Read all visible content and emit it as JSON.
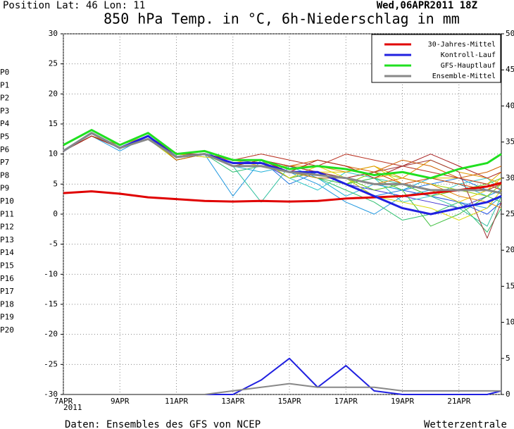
{
  "chart_data": {
    "type": "line",
    "position": "Position  Lat: 46 Lon: 11",
    "run": "Wed,06APR2011 18Z",
    "title": "850 hPa Temp. in °C, 6h-Niederschlag in mm",
    "year": "2011",
    "source": "Daten: Ensembles des GFS von NCEP",
    "brand": "Wetterzentrale",
    "x": [
      7,
      8,
      9,
      10,
      11,
      12,
      13,
      14,
      15,
      16,
      17,
      18,
      19,
      20,
      21,
      22,
      22.5
    ],
    "xlim": [
      7,
      22.5
    ],
    "xticks": [
      {
        "value": 7,
        "label": "7APR"
      },
      {
        "value": 9,
        "label": "9APR"
      },
      {
        "value": 11,
        "label": "11APR"
      },
      {
        "value": 13,
        "label": "13APR"
      },
      {
        "value": 15,
        "label": "15APR"
      },
      {
        "value": 17,
        "label": "17APR"
      },
      {
        "value": 19,
        "label": "19APR"
      },
      {
        "value": 21,
        "label": "21APR"
      }
    ],
    "ylim": [
      -30,
      30
    ],
    "yticks": [
      -30,
      -25,
      -20,
      -15,
      -10,
      -5,
      0,
      5,
      10,
      15,
      20,
      25,
      30
    ],
    "y2lim": [
      0,
      50
    ],
    "y2ticks": [
      0,
      5,
      10,
      15,
      20,
      25,
      30,
      35,
      40,
      45,
      50
    ],
    "grid": true,
    "members": [
      {
        "name": "P0",
        "color": "#4030d0",
        "values": [
          10.5,
          13,
          11,
          13,
          10,
          10,
          9,
          8.5,
          6,
          7,
          5,
          4,
          3,
          2,
          1,
          3,
          4
        ]
      },
      {
        "name": "P1",
        "color": "#2050e0",
        "values": [
          10.5,
          13,
          11,
          12.5,
          9,
          10,
          8,
          9,
          7,
          6,
          6,
          5,
          4,
          3,
          2,
          0,
          2
        ]
      },
      {
        "name": "P2",
        "color": "#2078e0",
        "values": [
          10.5,
          13.5,
          11,
          13,
          10,
          10.5,
          8,
          9,
          5,
          7,
          6,
          3,
          4,
          5,
          6,
          4,
          5
        ]
      },
      {
        "name": "P3",
        "color": "#2098e0",
        "values": [
          10.5,
          13,
          10.5,
          13,
          9.5,
          10,
          3,
          9,
          7,
          5,
          2,
          0,
          3,
          4,
          2,
          1,
          3
        ]
      },
      {
        "name": "P4",
        "color": "#20b0d8",
        "values": [
          10.5,
          13,
          11,
          12.5,
          10,
          10,
          8,
          7,
          8,
          6,
          3,
          5,
          4,
          6,
          5,
          3,
          4
        ]
      },
      {
        "name": "P5",
        "color": "#30c8c8",
        "values": [
          10.5,
          13,
          11,
          13,
          10,
          9.5,
          9,
          9,
          6,
          4,
          7,
          6,
          2,
          3,
          5,
          6,
          4
        ]
      },
      {
        "name": "P6",
        "color": "#30c0a0",
        "values": [
          10.5,
          13.5,
          11,
          13,
          9.5,
          10,
          8,
          2,
          8,
          7,
          5,
          6,
          5,
          3,
          1,
          -2,
          3
        ]
      },
      {
        "name": "P7",
        "color": "#30c070",
        "values": [
          10.5,
          13,
          11,
          12.5,
          9,
          10,
          7,
          8,
          7,
          6,
          4,
          2,
          -1,
          0,
          2,
          -3,
          1
        ]
      },
      {
        "name": "P8",
        "color": "#40c040",
        "values": [
          10.5,
          13.5,
          11,
          13,
          10,
          10,
          8,
          9,
          7,
          6,
          5,
          6,
          4,
          -2,
          0,
          3,
          2
        ]
      },
      {
        "name": "P9",
        "color": "#60c020",
        "values": [
          10.5,
          13,
          11.5,
          13,
          10,
          10,
          8,
          9,
          6,
          7,
          6,
          4,
          5,
          3,
          4,
          5,
          6
        ]
      },
      {
        "name": "P10",
        "color": "#90d000",
        "values": [
          10.5,
          13,
          11,
          13,
          9.5,
          10,
          8,
          8,
          7,
          7,
          5,
          7,
          6,
          5,
          4,
          3,
          5
        ]
      },
      {
        "name": "P11",
        "color": "#d8d800",
        "values": [
          10.5,
          13,
          11,
          12.5,
          9,
          10,
          8,
          9,
          6,
          8,
          6,
          3,
          2,
          1,
          -1,
          1,
          4
        ]
      },
      {
        "name": "P12",
        "color": "#e8c800",
        "values": [
          10.5,
          13.5,
          11,
          13,
          10,
          9.5,
          9,
          8,
          8,
          7,
          7,
          8,
          5,
          4,
          2,
          4,
          6
        ]
      },
      {
        "name": "P13",
        "color": "#e8b000",
        "values": [
          10.5,
          13,
          11,
          13,
          10,
          10,
          8,
          9,
          7,
          9,
          8,
          6,
          7,
          6,
          6,
          5,
          7
        ]
      },
      {
        "name": "P14",
        "color": "#e09800",
        "values": [
          10.5,
          13,
          11.5,
          13,
          9.5,
          10,
          9,
          9,
          8,
          8,
          7,
          8,
          6,
          9,
          7,
          6,
          5
        ]
      },
      {
        "name": "P15",
        "color": "#e08000",
        "values": [
          10.5,
          13,
          11,
          12.5,
          10,
          10,
          8,
          8,
          7,
          6,
          6,
          5,
          6,
          5,
          3,
          2,
          1
        ]
      },
      {
        "name": "P16",
        "color": "#d06000",
        "values": [
          10.5,
          13.5,
          11,
          13,
          9,
          10,
          8,
          9,
          8,
          9,
          8,
          7,
          9,
          8,
          6,
          7,
          8
        ]
      },
      {
        "name": "P17",
        "color": "#c84000",
        "values": [
          10.5,
          13,
          11,
          13,
          10,
          10,
          9,
          9,
          8,
          7,
          6,
          7,
          5,
          6,
          5,
          4,
          5
        ]
      },
      {
        "name": "P18",
        "color": "#b83020",
        "values": [
          10.5,
          13,
          11,
          13,
          10,
          10.5,
          9,
          10,
          9,
          8,
          10,
          9,
          8,
          7,
          6,
          5,
          4
        ]
      },
      {
        "name": "P19",
        "color": "#a82020",
        "values": [
          10.5,
          13,
          11,
          12.5,
          9.5,
          10,
          9,
          9,
          7,
          9,
          8,
          6,
          8,
          10,
          8,
          6,
          7
        ]
      },
      {
        "name": "P20",
        "color": "#a03838",
        "values": [
          10.5,
          13.5,
          11,
          13,
          10,
          10,
          8,
          9,
          8,
          7,
          6,
          7,
          8,
          9,
          7,
          -4,
          2
        ]
      }
    ],
    "series": [
      {
        "name": "30-Jahres-Mittel",
        "color": "#e00000",
        "values": [
          3.5,
          3.8,
          3.4,
          2.8,
          2.5,
          2.2,
          2.1,
          2.2,
          2.1,
          2.2,
          2.6,
          2.8,
          3,
          3.5,
          4,
          4.6,
          5.2
        ]
      },
      {
        "name": "Kontroll-Lauf",
        "color": "#2020e0",
        "values": [
          10.5,
          13.5,
          11,
          13,
          9.5,
          10,
          8.5,
          8.5,
          7,
          7,
          5,
          3,
          1,
          0,
          1,
          2,
          3
        ],
        "precip": [
          0,
          0,
          0,
          0,
          0,
          0,
          0,
          2,
          5,
          1,
          4,
          0.5,
          0,
          0,
          0,
          0,
          0.5
        ]
      },
      {
        "name": "GFS-Hauptlauf",
        "color": "#20e020",
        "values": [
          11.5,
          14,
          11.5,
          13.5,
          10,
          10.5,
          9,
          9,
          7.5,
          8,
          7.5,
          6.5,
          7,
          6,
          7.5,
          8.5,
          10
        ]
      },
      {
        "name": "Ensemble-Mittel",
        "color": "#888888",
        "values": [
          10.5,
          13.5,
          11,
          12.5,
          9.5,
          10,
          8,
          8,
          7,
          6.5,
          6,
          5,
          5,
          4,
          4,
          4,
          3.5
        ],
        "precip": [
          0,
          0,
          0,
          0,
          0,
          0,
          0.5,
          1,
          1.5,
          1,
          1,
          1,
          0.5,
          0.5,
          0.5,
          0.5,
          0.5
        ]
      }
    ]
  }
}
